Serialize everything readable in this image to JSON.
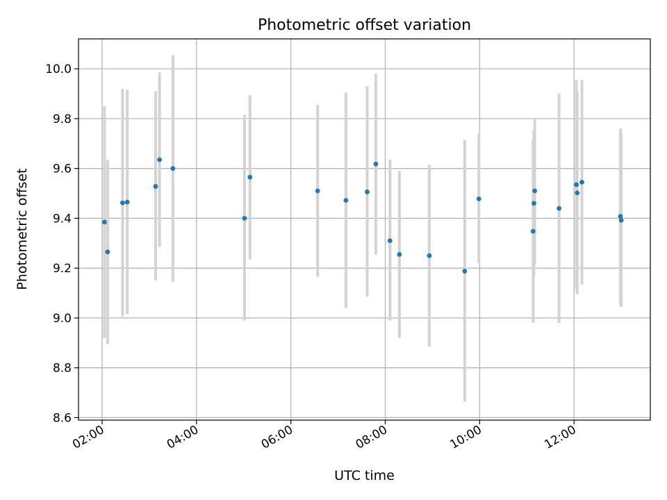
{
  "chart_data": {
    "type": "scatter",
    "title": "Photometric offset variation",
    "xlabel": "UTC time",
    "ylabel": "Photometric offset",
    "x_ticks": [
      "02:00",
      "04:00",
      "06:00",
      "08:00",
      "10:00",
      "12:00"
    ],
    "y_ticks": [
      "8.6",
      "8.8",
      "9.0",
      "9.2",
      "9.4",
      "9.6",
      "9.8",
      "10.0"
    ],
    "xlim": [
      "01:30",
      "13:37"
    ],
    "ylim": [
      8.59,
      10.12
    ],
    "grid": true,
    "colors": {
      "points": "#1f77b4",
      "error_bars": "#d3d3d3",
      "grid": "#b0b0b0"
    },
    "points": [
      {
        "x": "02:03",
        "y": 9.385,
        "ymin": 8.92,
        "ymax": 9.85
      },
      {
        "x": "02:07",
        "y": 9.265,
        "ymin": 8.895,
        "ymax": 9.635
      },
      {
        "x": "02:26",
        "y": 9.462,
        "ymin": 9.005,
        "ymax": 9.92
      },
      {
        "x": "02:32",
        "y": 9.465,
        "ymin": 9.015,
        "ymax": 9.915
      },
      {
        "x": "03:08",
        "y": 9.528,
        "ymin": 9.15,
        "ymax": 9.91
      },
      {
        "x": "03:13",
        "y": 9.635,
        "ymin": 9.285,
        "ymax": 9.985
      },
      {
        "x": "03:30",
        "y": 9.6,
        "ymin": 9.145,
        "ymax": 10.055
      },
      {
        "x": "05:01",
        "y": 9.4,
        "ymin": 8.99,
        "ymax": 9.815
      },
      {
        "x": "05:08",
        "y": 9.565,
        "ymin": 9.235,
        "ymax": 9.895
      },
      {
        "x": "06:34",
        "y": 9.51,
        "ymin": 9.165,
        "ymax": 9.855
      },
      {
        "x": "07:10",
        "y": 9.472,
        "ymin": 9.04,
        "ymax": 9.905
      },
      {
        "x": "07:37",
        "y": 9.506,
        "ymin": 9.085,
        "ymax": 9.93
      },
      {
        "x": "07:48",
        "y": 9.618,
        "ymin": 9.255,
        "ymax": 9.98
      },
      {
        "x": "08:06",
        "y": 9.31,
        "ymin": 8.99,
        "ymax": 9.635
      },
      {
        "x": "08:18",
        "y": 9.255,
        "ymin": 8.92,
        "ymax": 9.59
      },
      {
        "x": "08:56",
        "y": 9.25,
        "ymin": 8.885,
        "ymax": 9.615
      },
      {
        "x": "09:41",
        "y": 9.188,
        "ymin": 8.665,
        "ymax": 9.715
      },
      {
        "x": "09:59",
        "y": 9.478,
        "ymin": 9.22,
        "ymax": 9.74
      },
      {
        "x": "11:08",
        "y": 9.348,
        "ymin": 8.98,
        "ymax": 9.715
      },
      {
        "x": "11:09",
        "y": 9.46,
        "ymin": 9.165,
        "ymax": 9.755
      },
      {
        "x": "11:10",
        "y": 9.51,
        "ymin": 9.215,
        "ymax": 9.8
      },
      {
        "x": "11:41",
        "y": 9.44,
        "ymin": 8.98,
        "ymax": 9.9
      },
      {
        "x": "12:03",
        "y": 9.535,
        "ymin": 9.115,
        "ymax": 9.955
      },
      {
        "x": "12:04",
        "y": 9.502,
        "ymin": 9.095,
        "ymax": 9.91
      },
      {
        "x": "12:10",
        "y": 9.545,
        "ymin": 9.135,
        "ymax": 9.955
      },
      {
        "x": "12:59",
        "y": 9.408,
        "ymin": 9.055,
        "ymax": 9.76
      },
      {
        "x": "13:00",
        "y": 9.392,
        "ymin": 9.045,
        "ymax": 9.74
      }
    ]
  }
}
